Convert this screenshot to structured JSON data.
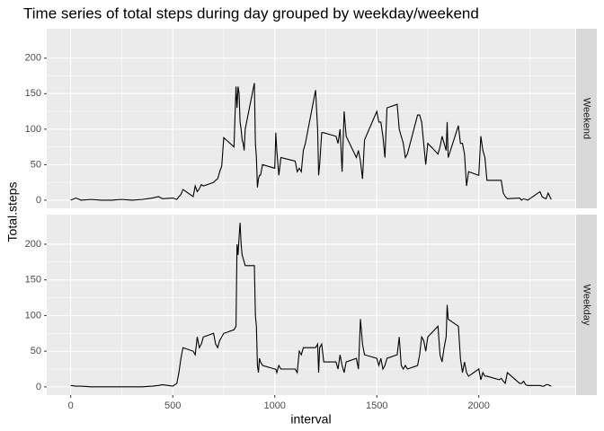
{
  "chart_data": {
    "type": "line",
    "facet": true,
    "title": "Time series of total steps during day grouped by weekday/weekend",
    "xlabel": "interval",
    "ylabel": "Total.steps",
    "x": [
      0,
      25,
      50,
      100,
      150,
      200,
      250,
      300,
      350,
      400,
      430,
      450,
      500,
      520,
      530,
      540,
      550,
      600,
      610,
      620,
      630,
      640,
      650,
      700,
      710,
      720,
      730,
      740,
      750,
      800,
      810,
      815,
      820,
      825,
      830,
      835,
      840,
      845,
      850,
      855,
      900,
      905,
      910,
      915,
      920,
      925,
      930,
      940,
      1000,
      1005,
      1010,
      1020,
      1030,
      1100,
      1110,
      1120,
      1130,
      1140,
      1150,
      1200,
      1210,
      1215,
      1220,
      1230,
      1240,
      1300,
      1310,
      1320,
      1330,
      1340,
      1350,
      1400,
      1410,
      1420,
      1430,
      1440,
      1500,
      1510,
      1520,
      1530,
      1540,
      1550,
      1600,
      1610,
      1620,
      1630,
      1640,
      1650,
      1700,
      1710,
      1720,
      1730,
      1740,
      1750,
      1800,
      1810,
      1820,
      1830,
      1840,
      1845,
      1850,
      1900,
      1910,
      1920,
      1930,
      1940,
      1950,
      2000,
      2010,
      2020,
      2030,
      2040,
      2100,
      2110,
      2120,
      2130,
      2140,
      2200,
      2210,
      2220,
      2230,
      2240,
      2300,
      2310,
      2320,
      2330,
      2340,
      2355
    ],
    "series": [
      {
        "name": "Weekend",
        "color": "#000000",
        "values": [
          0,
          3,
          0,
          1,
          0,
          0,
          1,
          0,
          1,
          3,
          5,
          2,
          3,
          1,
          5,
          8,
          15,
          5,
          20,
          12,
          16,
          22,
          20,
          25,
          28,
          30,
          40,
          48,
          88,
          75,
          160,
          130,
          160,
          150,
          110,
          100,
          85,
          80,
          70,
          100,
          165,
          80,
          60,
          18,
          30,
          35,
          35,
          50,
          45,
          95,
          70,
          35,
          60,
          55,
          40,
          45,
          40,
          70,
          80,
          155,
          100,
          35,
          50,
          95,
          95,
          90,
          80,
          100,
          40,
          125,
          90,
          60,
          70,
          55,
          30,
          85,
          125,
          110,
          110,
          90,
          60,
          130,
          135,
          100,
          90,
          80,
          60,
          65,
          120,
          120,
          110,
          80,
          50,
          80,
          65,
          75,
          90,
          80,
          70,
          110,
          60,
          105,
          80,
          80,
          65,
          20,
          40,
          35,
          90,
          70,
          60,
          28,
          28,
          28,
          10,
          5,
          2,
          3,
          0,
          2,
          1,
          0,
          12,
          5,
          3,
          2,
          10,
          1
        ]
      },
      {
        "name": "Weekday",
        "color": "#000000",
        "values": [
          2,
          1,
          1,
          0,
          0,
          0,
          0,
          0,
          0,
          1,
          2,
          3,
          1,
          5,
          20,
          40,
          55,
          50,
          45,
          70,
          55,
          60,
          70,
          75,
          60,
          55,
          65,
          70,
          75,
          80,
          85,
          200,
          185,
          210,
          230,
          200,
          185,
          180,
          175,
          170,
          170,
          100,
          85,
          30,
          20,
          40,
          35,
          30,
          25,
          25,
          20,
          30,
          25,
          25,
          20,
          50,
          45,
          55,
          55,
          55,
          60,
          20,
          55,
          60,
          35,
          35,
          25,
          45,
          30,
          20,
          35,
          40,
          25,
          95,
          60,
          45,
          40,
          30,
          40,
          25,
          30,
          40,
          45,
          70,
          30,
          25,
          30,
          25,
          30,
          45,
          70,
          65,
          50,
          70,
          85,
          45,
          35,
          55,
          70,
          115,
          95,
          85,
          40,
          20,
          35,
          20,
          15,
          25,
          10,
          20,
          15,
          15,
          10,
          12,
          8,
          5,
          20,
          5,
          5,
          8,
          3,
          2,
          2,
          1,
          1,
          3,
          3,
          1
        ]
      }
    ],
    "xlim": [
      -117.75,
      2472.75
    ],
    "xticks": [
      0,
      500,
      1000,
      1500,
      2000
    ],
    "ylim": [
      -11.5,
      241.5
    ],
    "yticks": [
      0,
      50,
      100,
      150,
      200
    ],
    "grid": true
  }
}
